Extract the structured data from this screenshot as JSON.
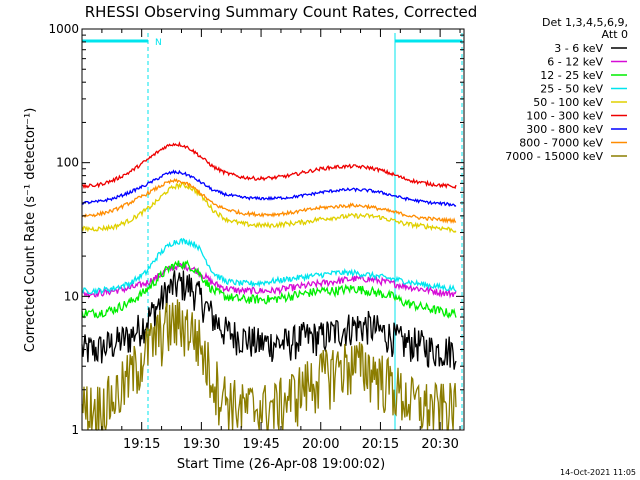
{
  "chart_data": {
    "type": "line",
    "title": "RHESSI Observing Summary Count Rates, Corrected",
    "xlabel": "Start Time (26-Apr-08 19:00:02)",
    "ylabel": "Corrected Count Rate (s⁻¹ detector⁻¹)",
    "y_scale": "log",
    "ylim": [
      1,
      1000
    ],
    "xlim_minutes": [
      0,
      96
    ],
    "x_tick_labels": [
      {
        "minute": 15,
        "label": "19:15"
      },
      {
        "minute": 30,
        "label": "19:30"
      },
      {
        "minute": 45,
        "label": "19:45"
      },
      {
        "minute": 60,
        "label": "20:00"
      },
      {
        "minute": 75,
        "label": "20:15"
      },
      {
        "minute": 90,
        "label": "20:30"
      }
    ],
    "y_tick_labels": [
      {
        "value": 1,
        "label": "1"
      },
      {
        "value": 10,
        "label": "10"
      },
      {
        "value": 100,
        "label": "100"
      },
      {
        "value": 1000,
        "label": "1000"
      }
    ],
    "legend_header": [
      "Det 1,3,4,5,6,9,",
      "Att 0"
    ],
    "legend_position": "right",
    "annotation": "N",
    "timestamp": "14-Oct-2021 11:05",
    "night_periods_minutes": [
      [
        0,
        17
      ],
      [
        78,
        94
      ]
    ],
    "sample_minutes": [
      0,
      4,
      8,
      12,
      16,
      19,
      21,
      23,
      25,
      27,
      29,
      31,
      33,
      36,
      40,
      44,
      48,
      52,
      56,
      60,
      64,
      68,
      72,
      75,
      78,
      81,
      84,
      88,
      92,
      94
    ],
    "series": [
      {
        "name": "3 - 6 keV",
        "color": "#000000",
        "noise": 0.3,
        "values": [
          4,
          4,
          4.5,
          5,
          6.5,
          8.5,
          10.5,
          12,
          12.5,
          12,
          10.5,
          8.5,
          7,
          5.5,
          5,
          4.5,
          4.5,
          4.5,
          5,
          5,
          5.5,
          6,
          6,
          5.5,
          5,
          4.5,
          4.5,
          4,
          4,
          4
        ]
      },
      {
        "name": "6 - 12 keV",
        "color": "#d60cd6",
        "noise": 0.06,
        "values": [
          10.5,
          10.5,
          11,
          11.5,
          12.5,
          14,
          15.5,
          16.5,
          17,
          16.5,
          15.5,
          14,
          12.5,
          11.5,
          11,
          11,
          11,
          11.5,
          12,
          12.5,
          13,
          13.5,
          13.5,
          13,
          12.5,
          12,
          11.5,
          11,
          10.5,
          10.5
        ]
      },
      {
        "name": "12 - 25 keV",
        "color": "#00ee00",
        "noise": 0.08,
        "values": [
          7.5,
          7.5,
          8,
          9,
          11,
          13.5,
          15.5,
          17,
          17.5,
          17,
          15.5,
          13,
          11,
          10,
          9.5,
          9.5,
          9.5,
          10,
          10.5,
          11,
          11,
          11.5,
          11,
          10.5,
          10,
          9,
          8.5,
          8,
          7.5,
          7.5
        ]
      },
      {
        "name": "25 - 50 keV",
        "color": "#00e5ee",
        "noise": 0.05,
        "values": [
          11,
          11,
          11.5,
          12.5,
          15,
          20,
          23,
          25.5,
          26,
          25.5,
          24,
          19,
          15,
          13,
          12.5,
          12.5,
          13,
          13.5,
          14,
          14.5,
          15,
          15,
          14.5,
          14,
          13.5,
          13,
          12.5,
          12,
          11.5,
          11.5
        ]
      },
      {
        "name": "50 - 100 keV",
        "color": "#e0d000",
        "noise": 0.04,
        "values": [
          32,
          32,
          33,
          37,
          44,
          52,
          60,
          66,
          68,
          66,
          60,
          52,
          44,
          38,
          35,
          34,
          34,
          35,
          36,
          38,
          39,
          40,
          40,
          39,
          37,
          35,
          34,
          33,
          32,
          31
        ]
      },
      {
        "name": "100 - 300 keV",
        "color": "#ee0000",
        "noise": 0.03,
        "values": [
          66,
          68,
          74,
          85,
          103,
          120,
          132,
          138,
          136,
          128,
          116,
          104,
          93,
          84,
          78,
          76,
          77,
          80,
          85,
          90,
          93,
          94,
          92,
          88,
          82,
          76,
          72,
          69,
          67,
          66
        ]
      },
      {
        "name": "300 - 800 keV",
        "color": "#0000ff",
        "noise": 0.025,
        "values": [
          50,
          51,
          54,
          60,
          68,
          76,
          82,
          85,
          84,
          80,
          74,
          68,
          62,
          58,
          55,
          54,
          54,
          55,
          57,
          60,
          62,
          63,
          62,
          60,
          57,
          54,
          52,
          50,
          49,
          48
        ]
      },
      {
        "name": "800 - 7000 keV",
        "color": "#ff8c00",
        "noise": 0.03,
        "values": [
          40,
          41,
          44,
          50,
          58,
          65,
          70,
          73,
          72,
          68,
          62,
          55,
          49,
          45,
          42,
          41,
          41,
          42,
          44,
          46,
          47,
          48,
          47,
          45,
          43,
          41,
          39,
          38,
          37,
          37
        ]
      },
      {
        "name": "7000 - 15000 keV",
        "color": "#8b7d00",
        "noise": 0.5,
        "values": [
          1.5,
          1.5,
          1.8,
          2.6,
          4,
          5.2,
          6,
          6.5,
          6.5,
          6,
          5,
          3.5,
          2.5,
          1.8,
          1.5,
          1.5,
          1.5,
          1.8,
          2.2,
          2.6,
          3,
          3.2,
          3,
          2.6,
          2.2,
          1.8,
          1.6,
          1.5,
          1.5,
          1.5
        ]
      }
    ]
  }
}
